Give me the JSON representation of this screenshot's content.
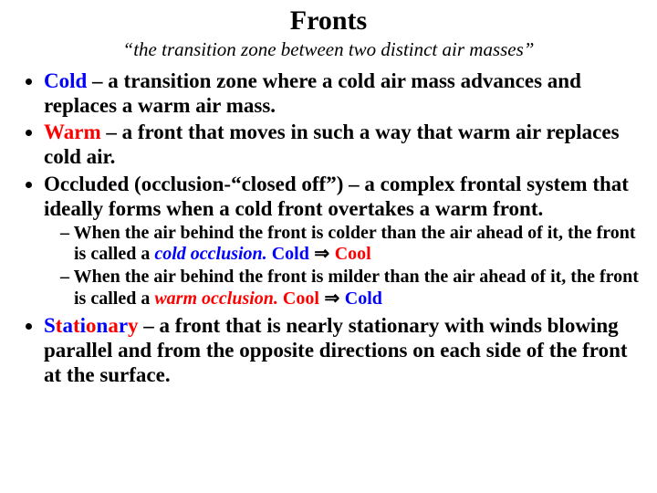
{
  "title": "Fronts",
  "subtitle": "“the transition zone between two distinct air masses”",
  "bullets": {
    "cold": {
      "term": "Cold",
      "text": " – a transition zone where a cold air mass advances and replaces a warm air mass."
    },
    "warm": {
      "term": "Warm",
      "text": " – a front that moves in such a way that warm air replaces cold air."
    },
    "occluded": {
      "term": "Occluded (occlusion-“closed off”)",
      "text": " – a complex frontal system that ideally forms when a cold front overtakes a warm front."
    },
    "sub1": {
      "lead": "When the air behind the front is colder than the air ahead of it, the front is called a ",
      "emph": "cold occlusion.",
      "after": " ",
      "left": "Cold",
      "arrow": " ⇒ ",
      "right": "Cool"
    },
    "sub2": {
      "lead": "When the air behind the front is milder than the air ahead of it, the front is called a ",
      "emph": "warm occlusion.",
      "after": " ",
      "left": "Cool",
      "arrow": " ⇒ ",
      "right": "Cold"
    },
    "stationary": {
      "term_chars": [
        "S",
        "t",
        "a",
        "t",
        "i",
        "o",
        "n",
        "a",
        "r",
        "y"
      ],
      "text": " – a front that is nearly stationary with winds blowing parallel and from the opposite directions on each side of the front at the surface."
    }
  },
  "colors": {
    "blue": "#0000ff",
    "red": "#ff0000",
    "black": "#000000",
    "background": "#ffffff"
  },
  "fontsize": {
    "title": 30,
    "subtitle": 21,
    "bullet": 23,
    "subbullet": 20
  }
}
